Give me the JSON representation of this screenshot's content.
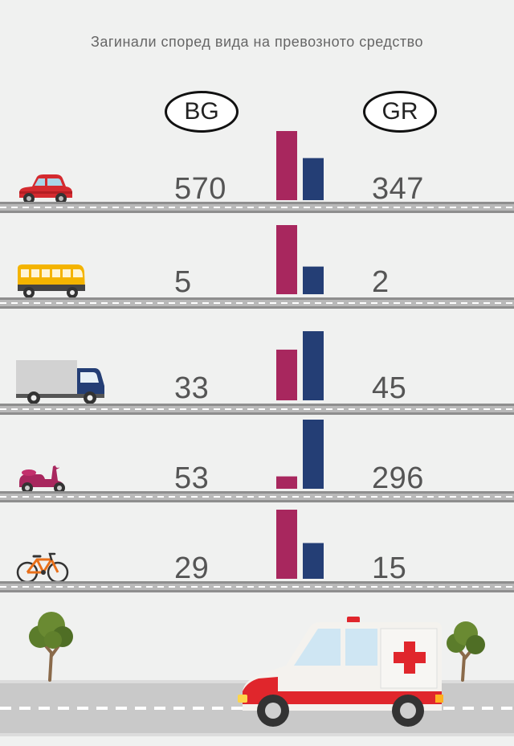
{
  "title": "Загинали според вида на превозното средство",
  "countries": {
    "left": "BG",
    "right": "GR"
  },
  "colors": {
    "bg": "#a8275e",
    "gr": "#243e75",
    "road": "#b9b9b9"
  },
  "chart_data": {
    "type": "bar",
    "title": "Загинали според вида на превозното средство",
    "categories": [
      "car",
      "bus",
      "truck",
      "scooter",
      "bicycle"
    ],
    "series": [
      {
        "name": "BG",
        "values": [
          570,
          5,
          33,
          53,
          29
        ]
      },
      {
        "name": "GR",
        "values": [
          347,
          2,
          45,
          296,
          15
        ]
      }
    ]
  },
  "rows": [
    {
      "icon": "car-icon",
      "bg": "570",
      "gr": "347"
    },
    {
      "icon": "bus-icon",
      "bg": "5",
      "gr": "2"
    },
    {
      "icon": "truck-icon",
      "bg": "33",
      "gr": "45"
    },
    {
      "icon": "scooter-icon",
      "bg": "53",
      "gr": "296"
    },
    {
      "icon": "bicycle-icon",
      "bg": "29",
      "gr": "15"
    }
  ]
}
